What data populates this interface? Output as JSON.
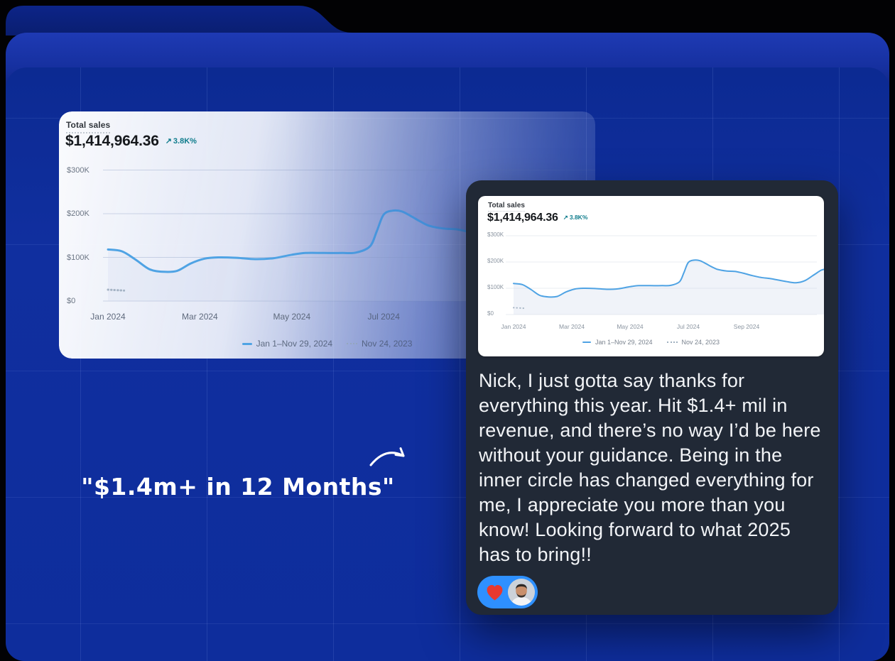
{
  "quote": {
    "text": "\"$1.4m+ in 12 Months\""
  },
  "testimonial": {
    "message_lines": [
      "Nick, I just gotta say thanks for",
      "everything this year. Hit $1.4+ mil in",
      "revenue, and there’s no way I’d be here",
      "without your guidance. Being in the",
      "inner circle has changed everything for",
      "me, I appreciate you more than you",
      "know! Looking forward to what 2025",
      "has to bring!!"
    ],
    "reactions": {
      "heart_icon": "red-heart",
      "avatar": "man-with-beard-photo"
    }
  },
  "chart_data": {
    "type": "line",
    "title": "Total sales",
    "total_value": "$1,414,964.36",
    "change_arrow": "↗",
    "change": "3.8K%",
    "ylim": [
      0,
      300
    ],
    "y_ticks": {
      "values": [
        300,
        200,
        100,
        0
      ],
      "labels": [
        "$300K",
        "$200K",
        "$100K",
        "$0"
      ]
    },
    "x_ticks_large_card": {
      "months": [
        0,
        2,
        4,
        6
      ],
      "labels": [
        "Jan 2024",
        "Mar 2024",
        "May 2024",
        "Jul 2024"
      ]
    },
    "x_ticks_small_card": {
      "months": [
        0,
        2,
        4,
        6,
        8
      ],
      "labels": [
        "Jan 2024",
        "Mar 2024",
        "May 2024",
        "Jul 2024",
        "Sep 2024"
      ]
    },
    "legend_position": "bottom",
    "grid": true,
    "series": [
      {
        "name": "Jan 1–Nov 29, 2024",
        "style": "solid",
        "color": "#4fa3e4",
        "points_month_valueK": [
          [
            0,
            118
          ],
          [
            0.3,
            114
          ],
          [
            0.6,
            95
          ],
          [
            0.9,
            73
          ],
          [
            1.2,
            67
          ],
          [
            1.5,
            69
          ],
          [
            1.8,
            86
          ],
          [
            2.1,
            97
          ],
          [
            2.4,
            100
          ],
          [
            2.8,
            99
          ],
          [
            3.2,
            96
          ],
          [
            3.6,
            98
          ],
          [
            4.0,
            106
          ],
          [
            4.3,
            110
          ],
          [
            4.7,
            110
          ],
          [
            5.1,
            110
          ],
          [
            5.4,
            111
          ],
          [
            5.7,
            125
          ],
          [
            5.85,
            160
          ],
          [
            6.0,
            198
          ],
          [
            6.2,
            207
          ],
          [
            6.4,
            205
          ],
          [
            6.6,
            194
          ],
          [
            6.8,
            182
          ],
          [
            7.0,
            172
          ],
          [
            7.3,
            166
          ],
          [
            7.6,
            164
          ],
          [
            7.9,
            157
          ],
          [
            8.2,
            148
          ],
          [
            8.5,
            141
          ],
          [
            8.8,
            137
          ],
          [
            9.1,
            131
          ],
          [
            9.4,
            125
          ],
          [
            9.7,
            121
          ],
          [
            10.0,
            129
          ],
          [
            10.3,
            150
          ],
          [
            10.55,
            168
          ],
          [
            10.7,
            173
          ]
        ]
      },
      {
        "name": "Nov 24, 2023",
        "style": "dotted",
        "color": "#93a5b8",
        "points_month_valueK": [
          [
            0,
            26
          ],
          [
            0.35,
            24
          ]
        ]
      }
    ]
  },
  "colors": {
    "folder_front_blue": "#0e2d9c",
    "folder_back_blue": "#1e3ab4",
    "page_background": "#020204",
    "dark_card": "#212936",
    "line_blue": "#4fa3e4",
    "trend_teal": "#0e7c8c",
    "reaction_pill_blue": "#2e90ff",
    "heart_red": "#e8392e"
  }
}
